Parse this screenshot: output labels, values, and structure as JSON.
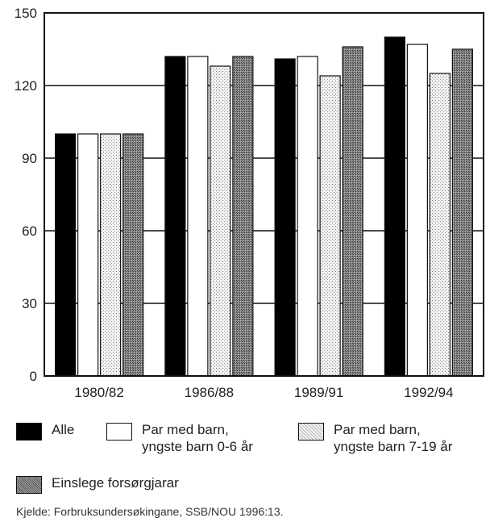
{
  "chart_data": {
    "type": "bar",
    "categories": [
      "1980/82",
      "1986/88",
      "1989/91",
      "1992/94"
    ],
    "ylim": [
      0,
      150
    ],
    "yticks": [
      0,
      30,
      60,
      90,
      120,
      150
    ],
    "grid": true,
    "legend_position": "bottom",
    "series": [
      {
        "name": "Alle",
        "pattern": "solid-black",
        "values": [
          100,
          132,
          131,
          140
        ]
      },
      {
        "name": "Par med barn,\nyngste barn 0-6 år",
        "pattern": "white",
        "values": [
          100,
          132,
          132,
          137
        ]
      },
      {
        "name": "Par med barn,\nyngste barn 7-19 år",
        "pattern": "light-dotted",
        "values": [
          100,
          128,
          124,
          125
        ]
      },
      {
        "name": "Einslege forsørgjarar",
        "pattern": "dark-crosshatch",
        "values": [
          100,
          132,
          136,
          135
        ]
      }
    ]
  },
  "source_note": "Kjelde: Forbruksundersøkingane, SSB/NOU 1996:13."
}
